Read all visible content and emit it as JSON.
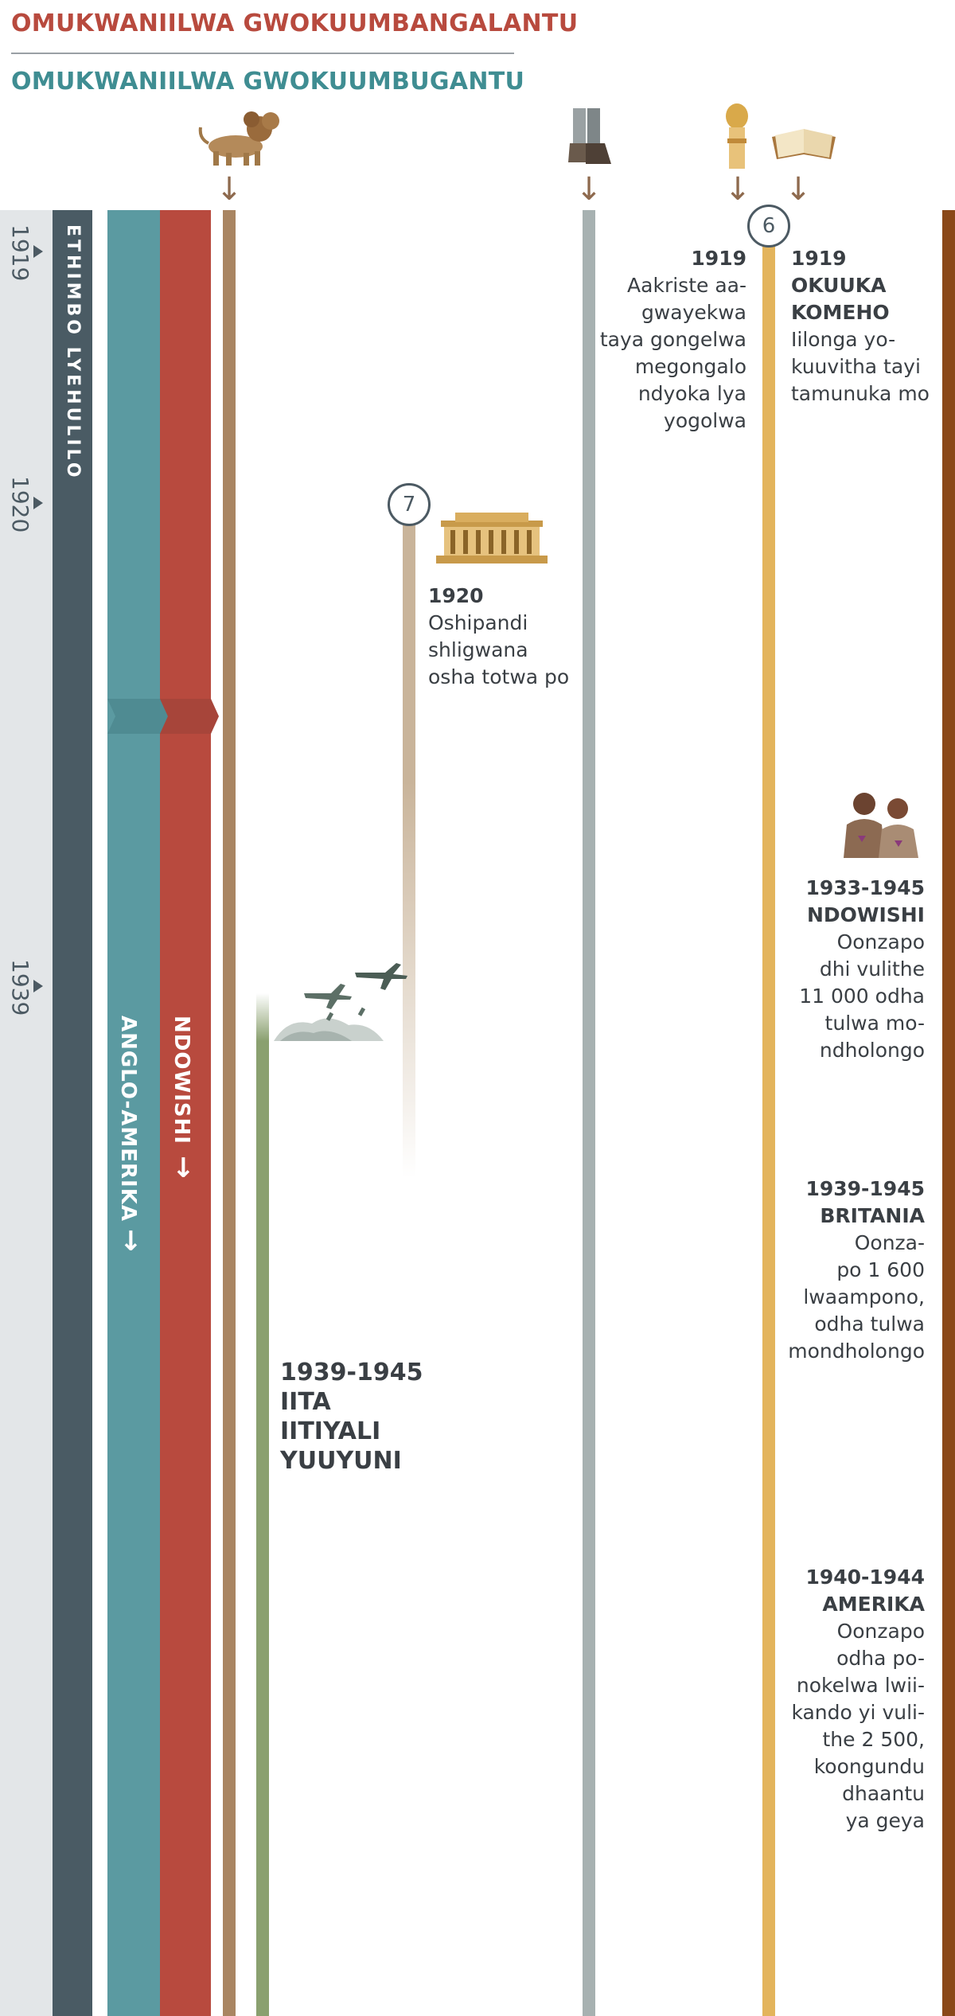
{
  "headers": {
    "red_title": "OMUKWANIILWA GWOKUUMBANGALANTU",
    "teal_title": "OMUKWANIILWA GWOKUUMBUGANTU"
  },
  "years": [
    "1919",
    "1920",
    "1939"
  ],
  "bands": {
    "last_days": "ETHIMBO LYEHULILO",
    "anglo_america": "ANGLO-AMERIKA",
    "anglo_america_arrow": "↓",
    "germany": "NDOWISHI",
    "germany_arrow": "↓"
  },
  "icons": [
    "lion-icon",
    "feet-icon",
    "wheat-icon",
    "bible-icon",
    "building-icon",
    "bombers-icon",
    "prisoners-icon"
  ],
  "markers": {
    "six": "6",
    "seven": "7"
  },
  "events": {
    "wheat": {
      "year": "1919",
      "text": "Aakriste aa-gwayekwa taya gongelwa megongalo ndyoka lya yogolwa",
      "lines": [
        "Aakriste aa-",
        "gwayekwa",
        "taya gongelwa",
        "megongalo",
        "ndyoka lya",
        "yogolwa"
      ]
    },
    "bible": {
      "year": "1919",
      "title_lines": [
        "OKUUKA",
        "KOMEHO"
      ],
      "lines": [
        "Iilonga yo-",
        "kuuvitha tayi",
        "tamunuka mo"
      ]
    },
    "league": {
      "year": "1920",
      "lines": [
        "Oshipandi",
        "shligwana",
        "osha totwa po"
      ]
    },
    "germany_persecution": {
      "title_lines": [
        "1933-1945",
        "NDOWISHI"
      ],
      "lines": [
        "Oonzapo",
        "dhi vulithe",
        "11 000 odha",
        "tulwa mo-",
        "ndholongo"
      ]
    },
    "britain": {
      "title_lines": [
        "1939-1945",
        "BRITANIA"
      ],
      "lines": [
        "Oonza-",
        "po 1 600",
        "lwaampono,",
        "odha tulwa",
        "mondholongo"
      ]
    },
    "america": {
      "title_lines": [
        "1940-1944",
        "AMERIKA"
      ],
      "lines": [
        "Oonzapo",
        "odha po-",
        "nokelwa lwii-",
        "kando yi vuli-",
        "the 2 500,",
        "koongundu",
        "dhaantu",
        "ya geya"
      ]
    },
    "ww2": {
      "title_lines": [
        "1939-1945",
        "IITA",
        "IITIYALI",
        "YUUYUNI"
      ]
    }
  },
  "colors": {
    "red": "#b84a3e",
    "teal": "#5b9aa1",
    "dark": "#4a5b64",
    "bronze": "#a98562",
    "gray_line": "#a7b1b1",
    "gold": "#e3b45c",
    "brown": "#8a4818",
    "green": "#8aa06f"
  }
}
